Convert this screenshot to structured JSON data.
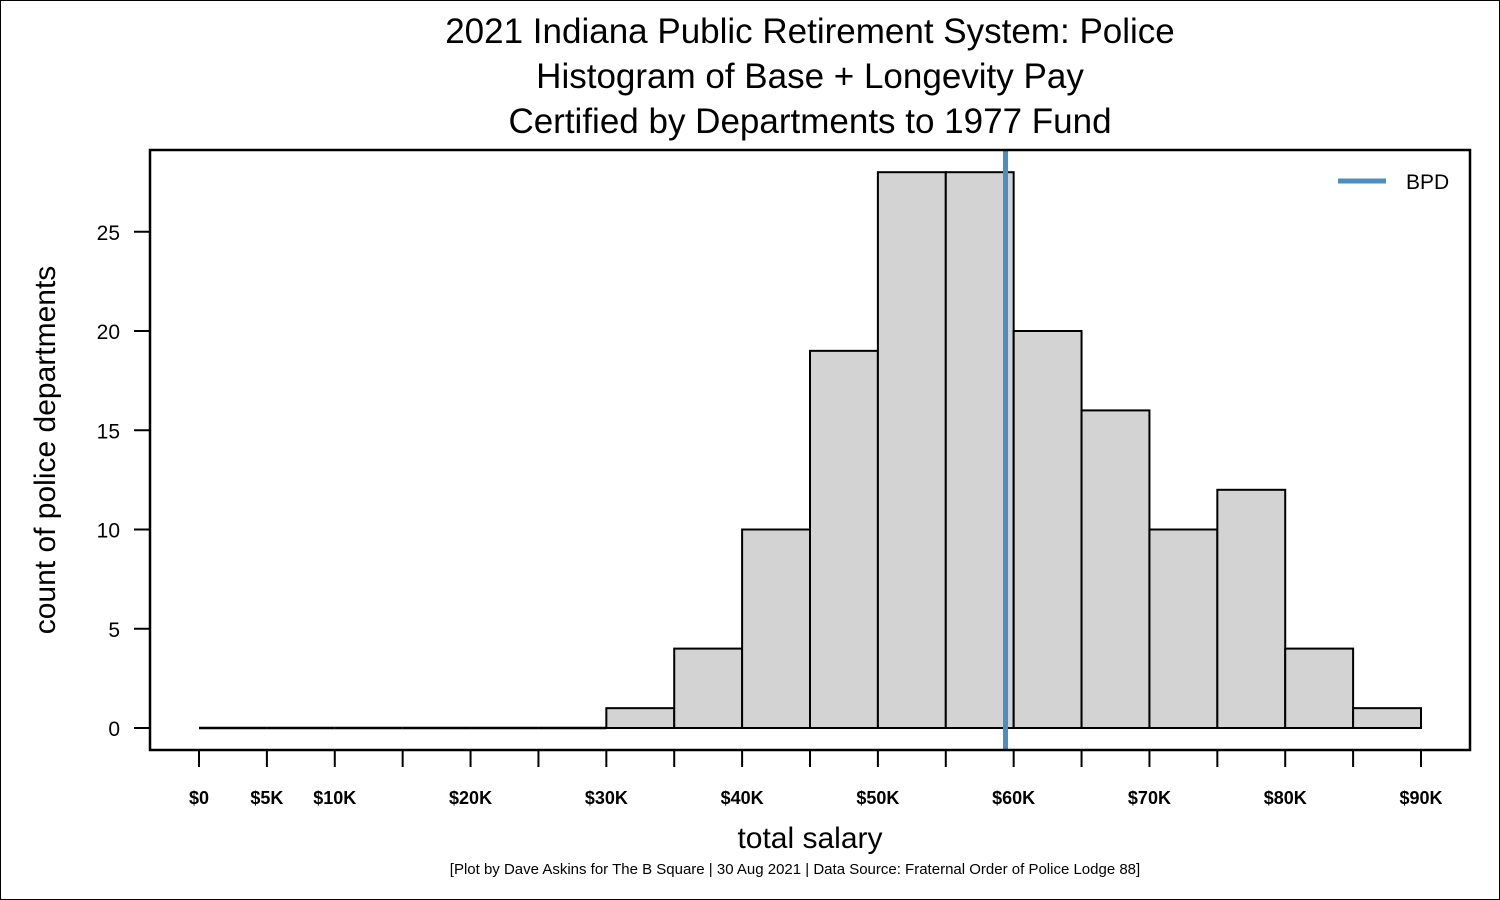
{
  "chart_data": {
    "type": "bar",
    "title_lines": [
      "2021 Indiana Public Retirement System: Police",
      "Histogram of Base + Longevity Pay",
      "Certified by Departments to 1977 Fund"
    ],
    "xlabel": "total salary",
    "ylabel": "count of police departments",
    "xlim": [
      0,
      90000
    ],
    "ylim": [
      0,
      28
    ],
    "bin_width": 5000,
    "bin_starts": [
      0,
      5000,
      10000,
      15000,
      20000,
      25000,
      30000,
      35000,
      40000,
      45000,
      50000,
      55000,
      60000,
      65000,
      70000,
      75000,
      80000,
      85000
    ],
    "values": [
      0,
      0,
      0,
      0,
      0,
      0,
      1,
      4,
      10,
      19,
      28,
      28,
      20,
      16,
      10,
      12,
      4,
      1
    ],
    "x_tick_positions": [
      0,
      5000,
      10000,
      15000,
      20000,
      25000,
      30000,
      35000,
      40000,
      45000,
      50000,
      55000,
      60000,
      65000,
      70000,
      75000,
      80000,
      85000,
      90000
    ],
    "x_tick_labels": [
      {
        "value": 0,
        "label": "$0"
      },
      {
        "value": 5000,
        "label": "$5K"
      },
      {
        "value": 10000,
        "label": "$10K"
      },
      {
        "value": 20000,
        "label": "$20K"
      },
      {
        "value": 30000,
        "label": "$30K"
      },
      {
        "value": 40000,
        "label": "$40K"
      },
      {
        "value": 50000,
        "label": "$50K"
      },
      {
        "value": 60000,
        "label": "$60K"
      },
      {
        "value": 70000,
        "label": "$70K"
      },
      {
        "value": 80000,
        "label": "$80K"
      },
      {
        "value": 90000,
        "label": "$90K"
      }
    ],
    "y_ticks": [
      0,
      5,
      10,
      15,
      20,
      25
    ],
    "grid": false,
    "bar_color": "#d3d3d3",
    "bar_edge_color": "#000000",
    "reference_line": {
      "name": "BPD",
      "x": 59400,
      "color": "#4a8fc0"
    },
    "legend": {
      "position": "top-right",
      "entries": [
        "BPD"
      ]
    }
  },
  "credit": "[Plot by Dave Askins for The B Square | 30 Aug 2021 | Data Source: Fraternal Order of Police Lodge 88]"
}
